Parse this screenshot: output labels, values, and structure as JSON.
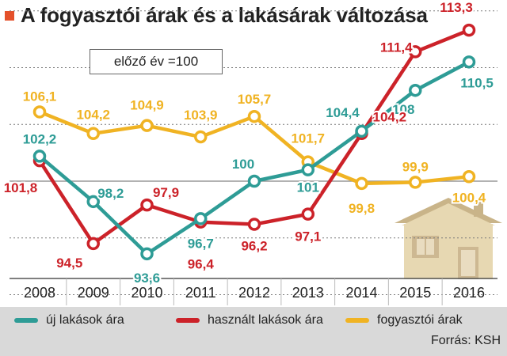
{
  "header": {
    "title": "A fogyasztói árak és a lakásárak változása"
  },
  "ref_note": "előző év =100",
  "source": "Forrás: KSH",
  "colors": {
    "new": "#2e9c96",
    "used": "#cc2229",
    "cpi": "#f0b323",
    "title_marker": "#e4512b"
  },
  "chart_data": {
    "type": "line",
    "title": "A fogyasztói árak és a lakásárak változása",
    "xlabel": "",
    "ylabel": "",
    "categories": [
      "2008",
      "2009",
      "2010",
      "2011",
      "2012",
      "2013",
      "2014",
      "2015",
      "2016"
    ],
    "reference_line": 100,
    "ylim": [
      90,
      116
    ],
    "grid": true,
    "legend_position": "bottom",
    "series": [
      {
        "name": "új lakások ára",
        "color": "#2e9c96",
        "values": [
          102.2,
          98.2,
          93.6,
          96.7,
          100,
          101,
          104.4,
          108,
          110.5
        ],
        "labels": [
          "102,2",
          "98,2",
          "93,6",
          "96,7",
          "100",
          "101",
          "104,4",
          "108",
          "110,5"
        ]
      },
      {
        "name": "használt lakások ára",
        "color": "#cc2229",
        "values": [
          101.8,
          94.5,
          97.9,
          96.4,
          96.2,
          97.1,
          104.2,
          111.4,
          113.3
        ],
        "labels": [
          "101,8",
          "94,5",
          "97,9",
          "96,4",
          "96,2",
          "97,1",
          "104,2",
          "111,4",
          "113,3"
        ]
      },
      {
        "name": "fogyasztói árak",
        "color": "#f0b323",
        "values": [
          106.1,
          104.2,
          104.9,
          103.9,
          105.7,
          101.7,
          99.8,
          99.9,
          100.4
        ],
        "labels": [
          "106,1",
          "104,2",
          "104,9",
          "103,9",
          "105,7",
          "101,7",
          "99,8",
          "99,9",
          "100,4"
        ]
      }
    ]
  }
}
